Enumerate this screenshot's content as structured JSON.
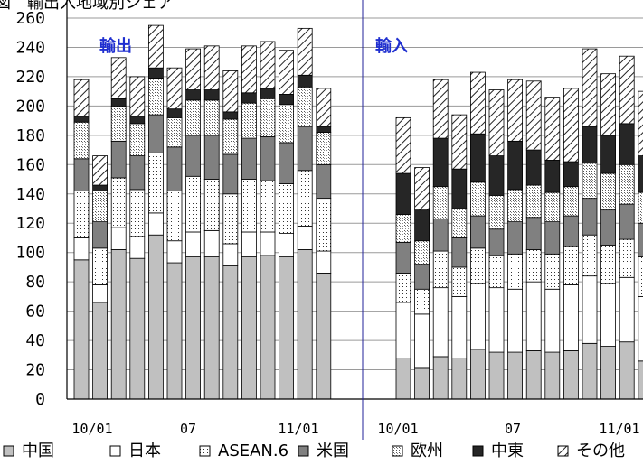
{
  "chart_data": {
    "type": "bar",
    "stacked": true,
    "yaxis": {
      "min": 0,
      "max": 260,
      "ticks": [
        0,
        20,
        40,
        60,
        80,
        100,
        120,
        140,
        160,
        180,
        200,
        220,
        240,
        260
      ]
    },
    "grid": "horizontal",
    "legend_placement": "bottom",
    "series": [
      {
        "name": "中国",
        "color": "#c0c0c0",
        "pattern": "solid"
      },
      {
        "name": "日本",
        "color": "#ffffff",
        "pattern": "solid"
      },
      {
        "name": "ASEAN.6",
        "color": "#ffffff",
        "pattern": "dots"
      },
      {
        "name": "米国",
        "color": "#808080",
        "pattern": "solid"
      },
      {
        "name": "欧州",
        "color": "#ffffff",
        "pattern": "grid"
      },
      {
        "name": "中東",
        "color": "#262626",
        "pattern": "solid"
      },
      {
        "name": "その他",
        "color": "#ffffff",
        "pattern": "hatch"
      }
    ],
    "panels": [
      {
        "label": "輸出",
        "xticks": [
          "10/01",
          "07",
          "11/01"
        ],
        "xtick_index": [
          0,
          6,
          12
        ],
        "bars": [
          [
            95,
            15,
            32,
            22,
            25,
            4,
            25
          ],
          [
            66,
            12,
            25,
            18,
            21,
            4,
            20
          ],
          [
            102,
            15,
            34,
            25,
            24,
            5,
            28
          ],
          [
            96,
            15,
            32,
            23,
            22,
            5,
            27
          ],
          [
            112,
            15,
            41,
            26,
            25,
            7,
            29
          ],
          [
            93,
            15,
            34,
            30,
            20,
            6,
            28
          ],
          [
            97,
            17,
            38,
            28,
            24,
            7,
            28
          ],
          [
            97,
            18,
            35,
            30,
            24,
            7,
            30
          ],
          [
            91,
            15,
            34,
            27,
            24,
            5,
            28
          ],
          [
            97,
            17,
            36,
            28,
            24,
            7,
            32
          ],
          [
            98,
            16,
            35,
            30,
            26,
            7,
            32
          ],
          [
            97,
            16,
            34,
            28,
            26,
            7,
            30
          ],
          [
            102,
            16,
            38,
            30,
            27,
            8,
            32
          ],
          [
            86,
            15,
            36,
            23,
            22,
            4,
            26
          ]
        ]
      },
      {
        "label": "輸入",
        "xticks": [
          "10/01",
          "07",
          "11/01"
        ],
        "xtick_index": [
          0,
          6,
          12
        ],
        "bars": [
          [
            28,
            38,
            20,
            21,
            19,
            28,
            38
          ],
          [
            21,
            37,
            17,
            17,
            16,
            21,
            29
          ],
          [
            29,
            47,
            25,
            22,
            22,
            33,
            40
          ],
          [
            28,
            42,
            20,
            20,
            20,
            27,
            37
          ],
          [
            34,
            45,
            24,
            22,
            23,
            33,
            42
          ],
          [
            32,
            44,
            22,
            18,
            23,
            27,
            45
          ],
          [
            32,
            43,
            24,
            22,
            22,
            33,
            42
          ],
          [
            33,
            47,
            22,
            22,
            22,
            24,
            47
          ],
          [
            32,
            43,
            24,
            22,
            20,
            22,
            43
          ],
          [
            33,
            45,
            26,
            21,
            20,
            17,
            50
          ],
          [
            38,
            46,
            28,
            25,
            24,
            25,
            53
          ],
          [
            36,
            43,
            26,
            24,
            25,
            26,
            42
          ],
          [
            39,
            44,
            26,
            24,
            27,
            28,
            46
          ],
          [
            26,
            44,
            27,
            23,
            21,
            25,
            44
          ]
        ]
      }
    ]
  },
  "partial_title": "図　輸出入地域別シェア"
}
